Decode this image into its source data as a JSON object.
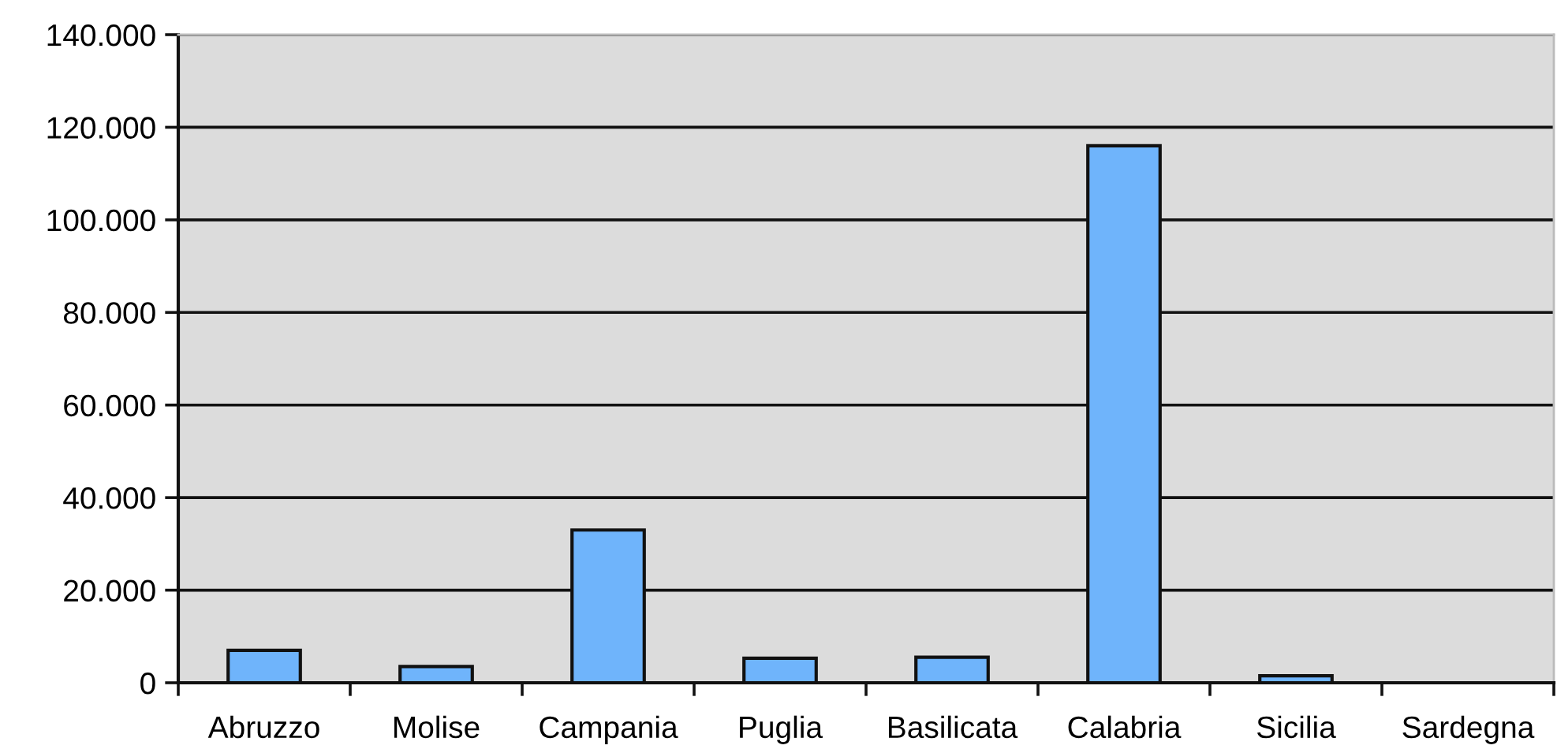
{
  "chart_data": {
    "type": "bar",
    "categories": [
      "Abruzzo",
      "Molise",
      "Campania",
      "Puglia",
      "Basilicata",
      "Calabria",
      "Sicilia",
      "Sardegna"
    ],
    "values": [
      7000,
      3500,
      33000,
      5300,
      5500,
      116000,
      1500,
      null
    ],
    "color": "#6fb4fb",
    "ylim": [
      0,
      140000
    ],
    "yticks": [
      0,
      {
        "value": 20000,
        "label": "20.000"
      },
      {
        "value": 40000,
        "label": "40.000"
      },
      {
        "value": 60000,
        "label": "60.000"
      },
      {
        "value": 80000,
        "label": "80.000"
      },
      {
        "value": 100000,
        "label": "100.000"
      },
      {
        "value": 120000,
        "label": "120.000"
      },
      {
        "value": 140000,
        "label": "140.000"
      }
    ],
    "grid": "y"
  }
}
